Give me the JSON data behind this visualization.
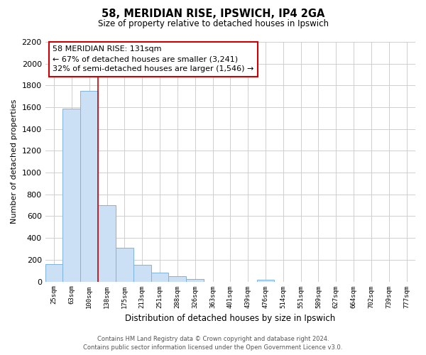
{
  "title1": "58, MERIDIAN RISE, IPSWICH, IP4 2GA",
  "title2": "Size of property relative to detached houses in Ipswich",
  "xlabel": "Distribution of detached houses by size in Ipswich",
  "ylabel": "Number of detached properties",
  "bar_labels": [
    "25sqm",
    "63sqm",
    "100sqm",
    "138sqm",
    "175sqm",
    "213sqm",
    "251sqm",
    "288sqm",
    "326sqm",
    "363sqm",
    "401sqm",
    "439sqm",
    "476sqm",
    "514sqm",
    "551sqm",
    "589sqm",
    "627sqm",
    "664sqm",
    "702sqm",
    "739sqm",
    "777sqm"
  ],
  "bar_values": [
    160,
    1590,
    1750,
    700,
    310,
    155,
    85,
    50,
    20,
    0,
    0,
    0,
    15,
    0,
    0,
    0,
    0,
    0,
    0,
    0,
    0
  ],
  "bar_color": "#cce0f5",
  "bar_edge_color": "#7fb3e0",
  "vline_color": "#cc0000",
  "vline_x_idx": 2.5,
  "ylim": [
    0,
    2200
  ],
  "yticks": [
    0,
    200,
    400,
    600,
    800,
    1000,
    1200,
    1400,
    1600,
    1800,
    2000,
    2200
  ],
  "annotation_title": "58 MERIDIAN RISE: 131sqm",
  "annotation_line1": "← 67% of detached houses are smaller (3,241)",
  "annotation_line2": "32% of semi-detached houses are larger (1,546) →",
  "annotation_box_edge": "#cc0000",
  "footer1": "Contains HM Land Registry data © Crown copyright and database right 2024.",
  "footer2": "Contains public sector information licensed under the Open Government Licence v3.0.",
  "background_color": "#ffffff",
  "grid_color": "#c8c8c8"
}
